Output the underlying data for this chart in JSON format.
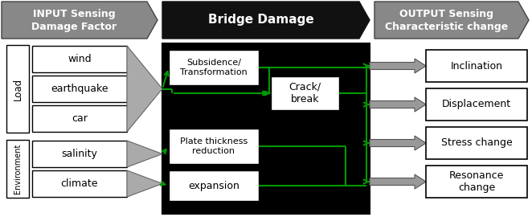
{
  "title_left": "INPUT Sensing\nDamage Factor",
  "title_center": "Bridge Damage",
  "title_right": "OUTPUT Sensing\nCharacteristic change",
  "gray": "#888888",
  "dark_gray": "#666666",
  "black": "#000000",
  "white": "#ffffff",
  "green": "#009900",
  "load_items": [
    "wind",
    "earthquake",
    "car"
  ],
  "env_items": [
    "salinity",
    "climate"
  ],
  "output_items": [
    "Inclination",
    "Displacement",
    "Stress change",
    "Resonance\nchange"
  ],
  "fig_w": 6.62,
  "fig_h": 2.7,
  "dpi": 100
}
